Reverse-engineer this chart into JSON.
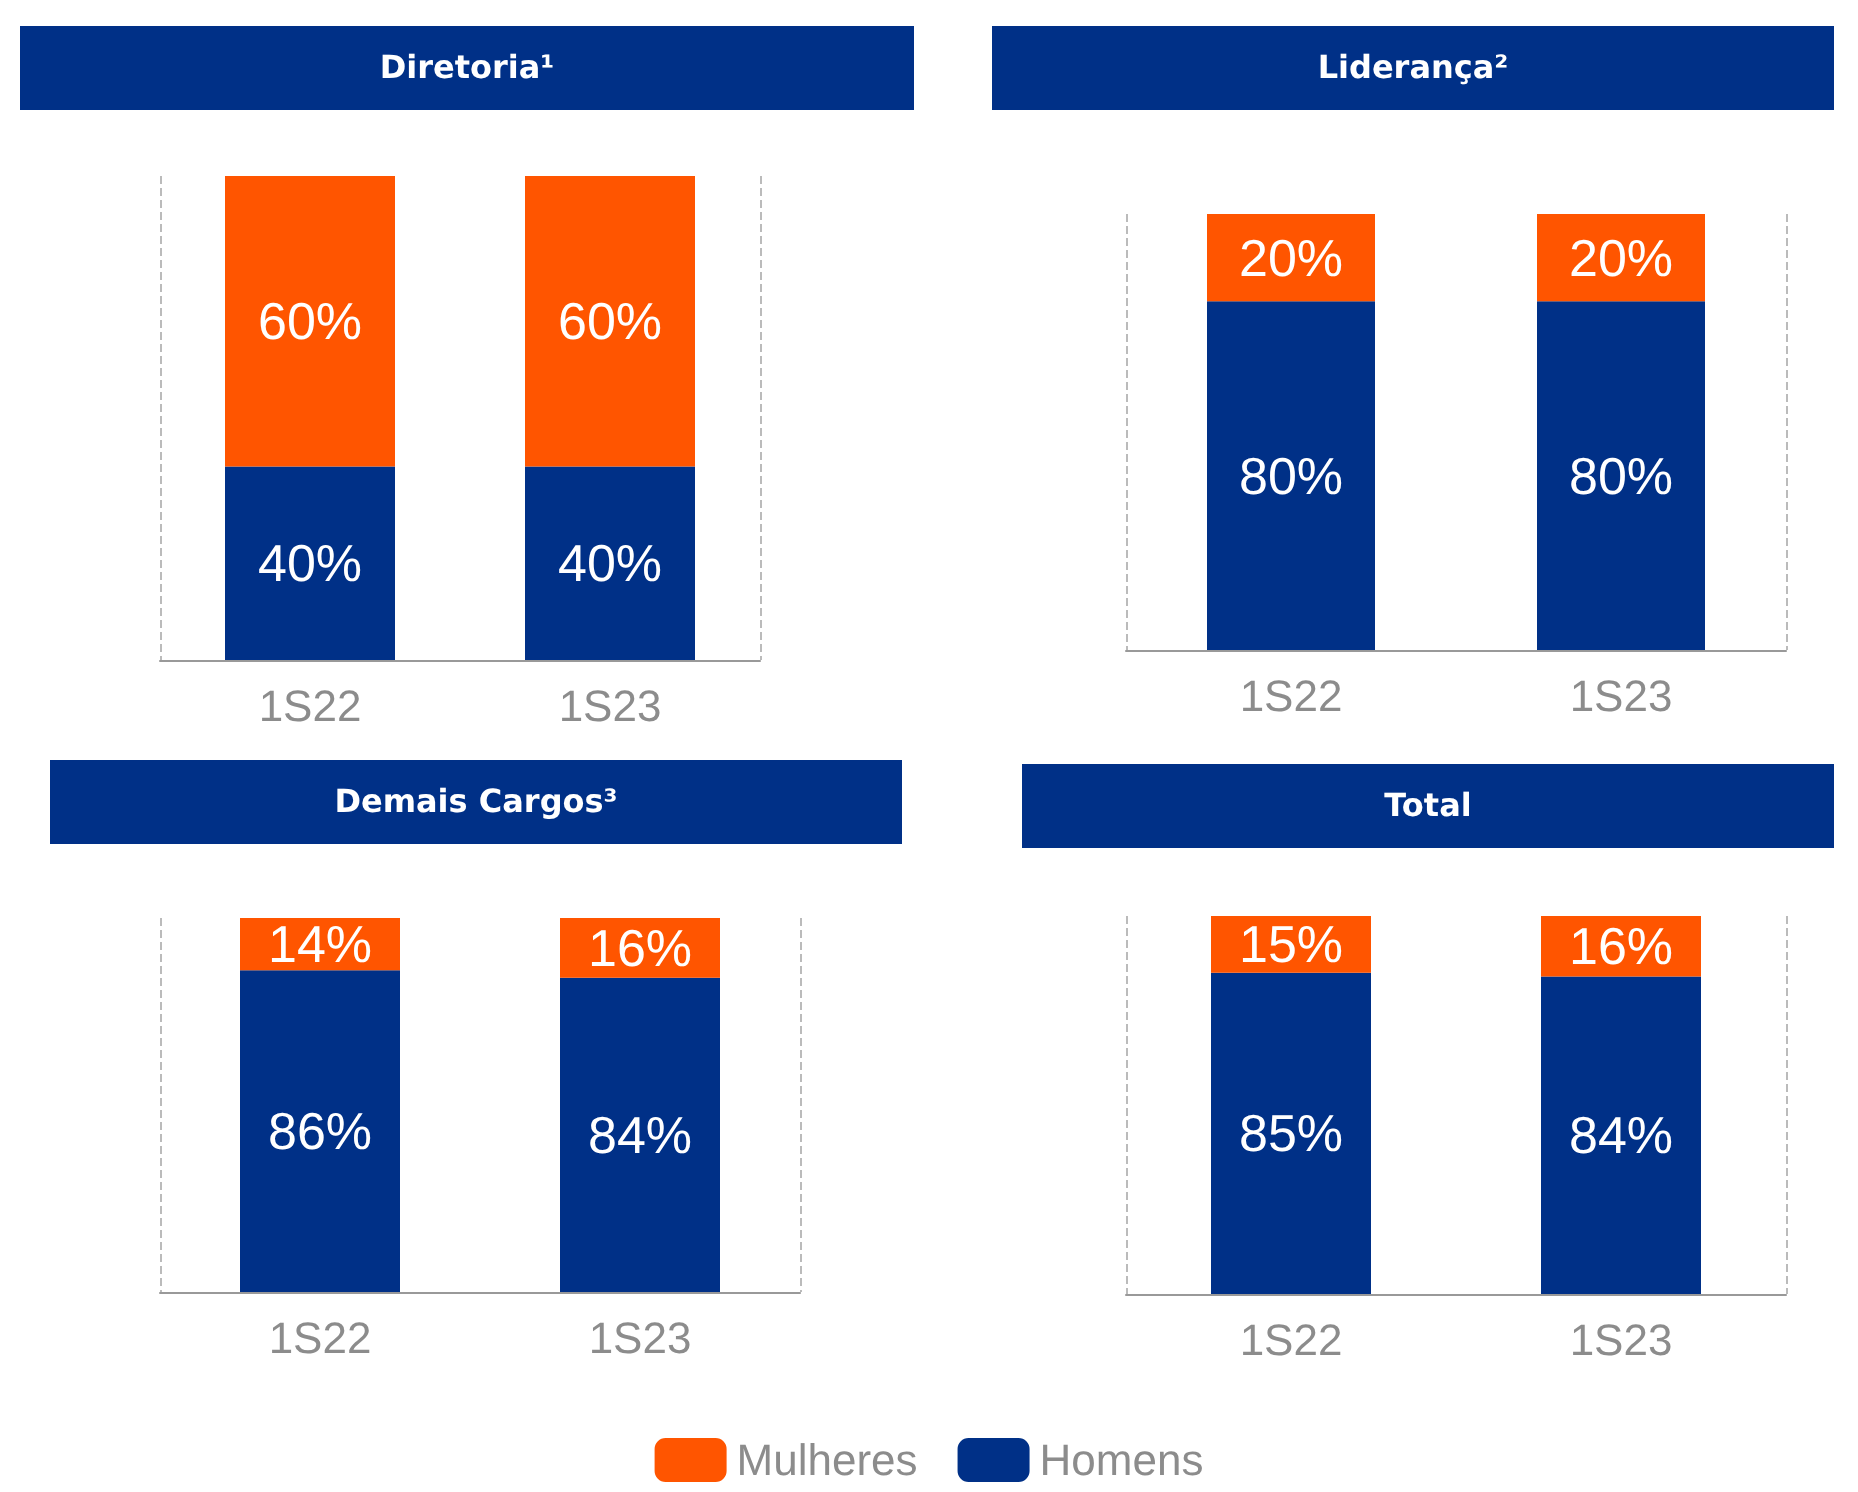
{
  "chart_data": [
    {
      "type": "bar",
      "title": "Diretoria¹",
      "categories": [
        "1S22",
        "1S23"
      ],
      "stacked": true,
      "grid": "x",
      "series": [
        {
          "color": "#003087",
          "values": [
            40,
            40
          ],
          "value_labels": [
            "40%",
            "40%"
          ]
        },
        {
          "color": "#ff5500",
          "values": [
            60,
            60
          ],
          "value_labels": [
            "60%",
            "60%"
          ]
        }
      ]
    },
    {
      "type": "bar",
      "title": "Liderança²",
      "categories": [
        "1S22",
        "1S23"
      ],
      "stacked": true,
      "grid": "x",
      "series": [
        {
          "color": "#003087",
          "values": [
            80,
            80
          ],
          "value_labels": [
            "80%",
            "80%"
          ]
        },
        {
          "color": "#ff5500",
          "values": [
            20,
            20
          ],
          "value_labels": [
            "20%",
            "20%"
          ]
        }
      ]
    },
    {
      "type": "bar",
      "title": "Demais Cargos³",
      "categories": [
        "1S22",
        "1S23"
      ],
      "stacked": true,
      "grid": "x",
      "series": [
        {
          "color": "#003087",
          "values": [
            86,
            84
          ],
          "value_labels": [
            "86%",
            "84%"
          ]
        },
        {
          "color": "#ff5500",
          "values": [
            14,
            16
          ],
          "value_labels": [
            "14%",
            "16%"
          ]
        }
      ]
    },
    {
      "type": "bar",
      "title": "Total",
      "categories": [
        "1S22",
        "1S23"
      ],
      "stacked": true,
      "grid": "x",
      "legend": "bottom",
      "series": [
        {
          "name": "Homens",
          "color": "#003087",
          "values": [
            85,
            84
          ],
          "value_labels": [
            "85%",
            "84%"
          ]
        },
        {
          "name": "Mulheres",
          "color": "#ff5500",
          "values": [
            15,
            16
          ],
          "value_labels": [
            "15%",
            "16%"
          ]
        }
      ]
    }
  ]
}
